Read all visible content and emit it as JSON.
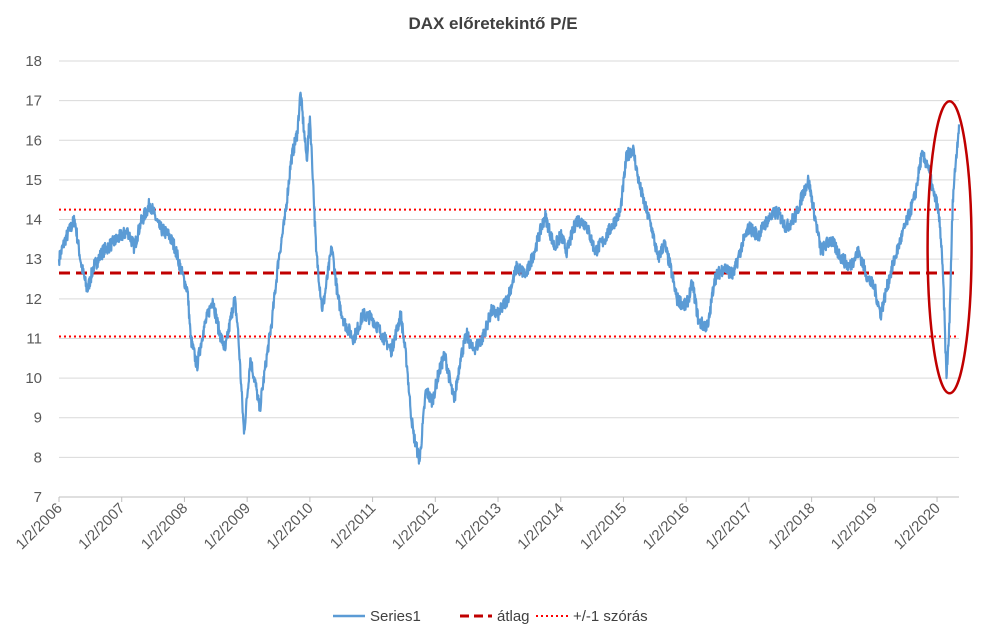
{
  "chart_data": {
    "type": "line",
    "title": "DAX előretekintő P/E",
    "ylim": [
      7,
      18
    ],
    "y_ticks": [
      "7",
      "8",
      "9",
      "10",
      "11",
      "12",
      "13",
      "14",
      "15",
      "16",
      "17",
      "18"
    ],
    "x_tick_labels": [
      "1/2/2006",
      "1/2/2007",
      "1/2/2008",
      "1/2/2009",
      "1/2/2010",
      "1/2/2011",
      "1/2/2012",
      "1/2/2013",
      "1/2/2014",
      "1/2/2015",
      "1/2/2016",
      "1/2/2017",
      "1/2/2018",
      "1/2/2019",
      "1/2/2020"
    ],
    "xlim_years": [
      2006.0,
      2020.35
    ],
    "grid": "horizontal",
    "legend_position": "bottom",
    "series": [
      {
        "name": "Series1",
        "style": "solid",
        "color": "#5B9BD5",
        "x": [
          2006.0,
          2006.1,
          2006.25,
          2006.35,
          2006.45,
          2006.55,
          2006.7,
          2006.85,
          2007.0,
          2007.1,
          2007.2,
          2007.3,
          2007.45,
          2007.6,
          2007.75,
          2007.85,
          2007.95,
          2008.05,
          2008.1,
          2008.2,
          2008.3,
          2008.45,
          2008.55,
          2008.65,
          2008.75,
          2008.8,
          2008.85,
          2008.95,
          2009.05,
          2009.15,
          2009.2,
          2009.3,
          2009.4,
          2009.5,
          2009.6,
          2009.7,
          2009.8,
          2009.85,
          2009.95,
          2010.0,
          2010.05,
          2010.1,
          2010.2,
          2010.35,
          2010.45,
          2010.55,
          2010.7,
          2010.85,
          2011.0,
          2011.15,
          2011.3,
          2011.45,
          2011.55,
          2011.6,
          2011.65,
          2011.75,
          2011.85,
          2011.95,
          2012.05,
          2012.15,
          2012.3,
          2012.4,
          2012.5,
          2012.6,
          2012.75,
          2012.9,
          2013.0,
          2013.15,
          2013.3,
          2013.45,
          2013.6,
          2013.75,
          2013.9,
          2014.0,
          2014.1,
          2014.25,
          2014.4,
          2014.55,
          2014.7,
          2014.8,
          2014.95,
          2015.05,
          2015.15,
          2015.25,
          2015.35,
          2015.45,
          2015.55,
          2015.65,
          2015.75,
          2015.85,
          2016.0,
          2016.1,
          2016.2,
          2016.35,
          2016.45,
          2016.6,
          2016.75,
          2016.9,
          2017.0,
          2017.15,
          2017.3,
          2017.45,
          2017.6,
          2017.75,
          2017.85,
          2017.95,
          2018.05,
          2018.15,
          2018.3,
          2018.45,
          2018.6,
          2018.75,
          2018.9,
          2019.0,
          2019.1,
          2019.25,
          2019.4,
          2019.55,
          2019.65,
          2019.75,
          2019.85,
          2019.95,
          2020.0,
          2020.05,
          2020.1,
          2020.15,
          2020.2,
          2020.25,
          2020.3,
          2020.35
        ],
        "values": [
          13.0,
          13.5,
          14.0,
          12.9,
          12.2,
          12.8,
          13.2,
          13.4,
          13.6,
          13.7,
          13.3,
          13.9,
          14.4,
          13.8,
          13.6,
          13.3,
          12.7,
          12.2,
          11.0,
          10.3,
          11.2,
          12.0,
          11.2,
          10.7,
          11.6,
          12.0,
          11.3,
          8.6,
          10.5,
          9.7,
          9.2,
          10.4,
          11.5,
          13.0,
          14.0,
          15.5,
          16.2,
          17.2,
          15.5,
          16.6,
          15.0,
          13.2,
          11.7,
          13.3,
          12.0,
          11.4,
          11.0,
          11.6,
          11.5,
          11.1,
          10.7,
          11.6,
          10.3,
          9.3,
          8.6,
          7.9,
          9.7,
          9.4,
          10.1,
          10.6,
          9.4,
          10.5,
          11.1,
          10.7,
          11.0,
          11.7,
          11.6,
          12.0,
          12.8,
          12.6,
          13.3,
          14.1,
          13.3,
          13.6,
          13.2,
          14.0,
          13.9,
          13.2,
          13.5,
          13.8,
          14.2,
          15.6,
          15.8,
          14.9,
          14.3,
          13.8,
          13.0,
          13.4,
          12.8,
          12.0,
          11.8,
          12.4,
          11.4,
          11.3,
          12.5,
          12.8,
          12.6,
          13.4,
          13.8,
          13.6,
          14.0,
          14.2,
          13.8,
          14.1,
          14.6,
          15.0,
          14.1,
          13.2,
          13.5,
          13.1,
          12.8,
          13.2,
          12.5,
          12.3,
          11.6,
          12.6,
          13.4,
          14.1,
          14.6,
          15.6,
          15.4,
          14.6,
          14.4,
          13.8,
          12.4,
          10.0,
          11.4,
          14.5,
          15.5,
          16.4
        ]
      },
      {
        "name": "átlag",
        "style": "dashed",
        "color": "#C00000",
        "value": 12.65
      },
      {
        "name": "+/-1 szórás",
        "style": "dotted",
        "color": "#FF0000",
        "values": [
          14.25,
          11.05
        ]
      }
    ],
    "annotation": {
      "type": "ellipse",
      "color": "#C00000",
      "x_center_year": 2020.2,
      "y_center": 13.3
    }
  }
}
